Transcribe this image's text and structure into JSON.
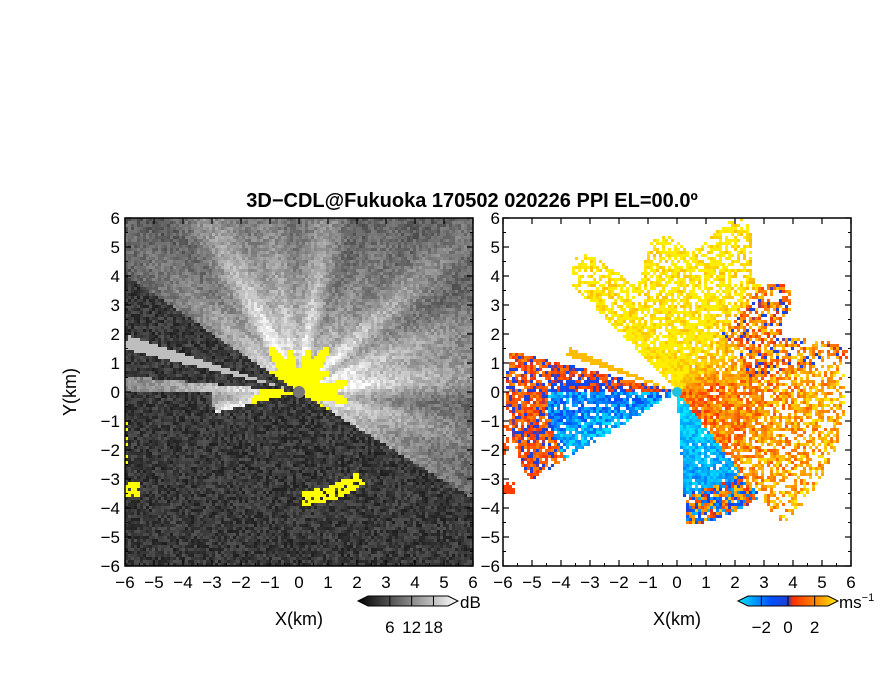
{
  "title": "3D−CDL@Fukuoka 170502 020226 PPI EL=00.0º",
  "chart_data": [
    {
      "type": "heatmap",
      "panel": "left",
      "quantity": "signal intensity",
      "xlabel": "X(km)",
      "ylabel": "Y(km)",
      "xlim": [
        -6,
        6
      ],
      "ylim": [
        -6,
        6
      ],
      "x_ticks": [
        "−6",
        "−5",
        "−4",
        "−3",
        "−2",
        "−1",
        "0",
        "1",
        "2",
        "3",
        "4",
        "5",
        "6"
      ],
      "y_ticks": [
        "6",
        "5",
        "4",
        "3",
        "2",
        "1",
        "0",
        "−1",
        "−2",
        "−3",
        "−4",
        "−5",
        "−6"
      ],
      "colorbar": {
        "unit": "dB",
        "ticks": [
          "6",
          "12",
          "18"
        ],
        "tick_values": [
          6,
          12,
          18
        ],
        "range": [
          0,
          22
        ],
        "colors": [
          "#000000",
          "#ffffff"
        ],
        "overlay_color": "#ffff00"
      }
    },
    {
      "type": "heatmap",
      "panel": "right",
      "quantity": "radial velocity",
      "xlabel": "X(km)",
      "ylabel": "",
      "xlim": [
        -6,
        6
      ],
      "ylim": [
        -6,
        6
      ],
      "x_ticks": [
        "−6",
        "−5",
        "−4",
        "−3",
        "−2",
        "−1",
        "0",
        "1",
        "2",
        "3",
        "4",
        "5",
        "6"
      ],
      "y_ticks": [
        "6",
        "5",
        "4",
        "3",
        "2",
        "1",
        "0",
        "−1",
        "−2",
        "−3",
        "−4",
        "−5",
        "−6"
      ],
      "colorbar": {
        "unit": "ms",
        "unit_sup": "−1",
        "ticks": [
          "−2",
          "0",
          "2"
        ],
        "tick_values": [
          -2,
          0,
          2
        ],
        "range": [
          -3,
          3
        ],
        "colors": [
          "#00e6ff",
          "#0050ff",
          "#ff3000",
          "#ffee00"
        ]
      }
    }
  ]
}
